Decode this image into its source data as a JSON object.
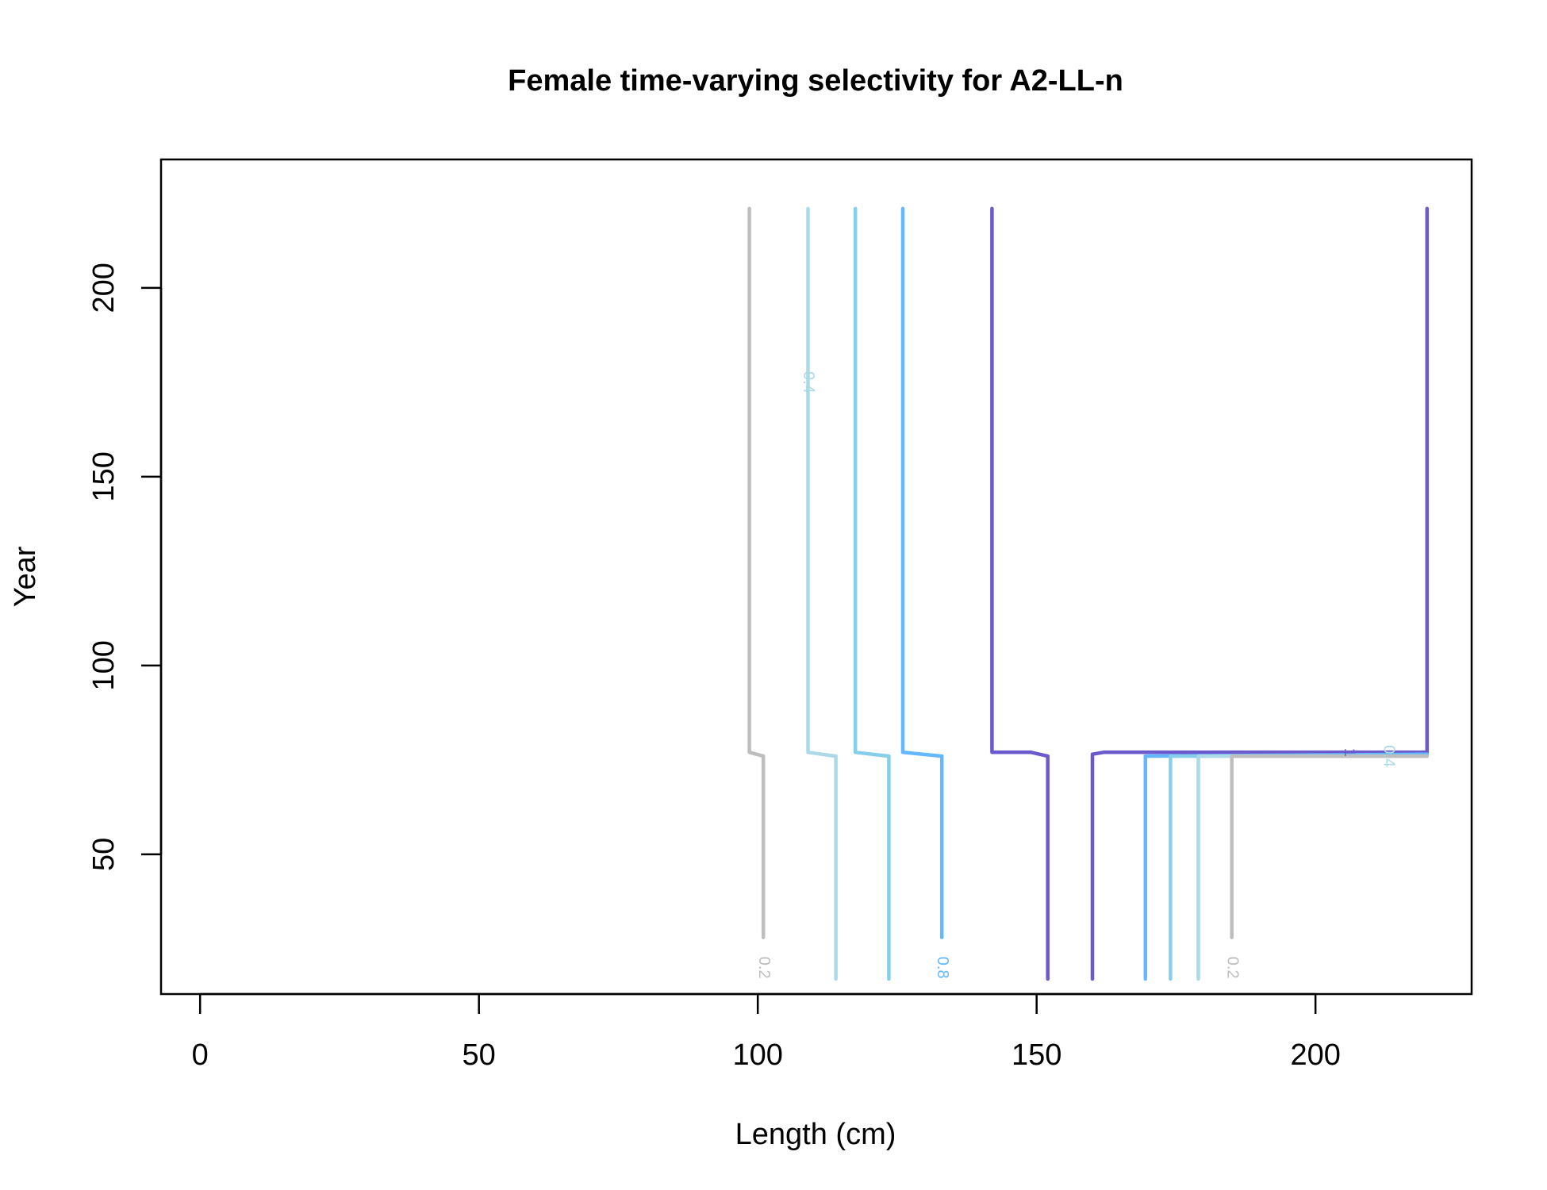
{
  "chart_data": {
    "type": "contour",
    "title": "Female time-varying selectivity for A2-LL-n",
    "xlabel": "Length (cm)",
    "ylabel": "Year",
    "xlim": [
      -7,
      228
    ],
    "ylim": [
      13,
      234
    ],
    "xticks": [
      0,
      50,
      100,
      150,
      200
    ],
    "yticks": [
      50,
      100,
      150,
      200
    ],
    "grid": false,
    "legend": "none",
    "contours": [
      {
        "level": 0.2,
        "label": "0.2",
        "color": "#BEBEBE",
        "points": [
          [
            98.5,
            221
          ],
          [
            98.5,
            77
          ],
          [
            101,
            76
          ],
          [
            101,
            28
          ]
        ],
        "label_at": [
          101,
          20
        ]
      },
      {
        "level": 0.4,
        "label": "0.4",
        "color": "#ADD8E6",
        "points": [
          [
            109,
            221
          ],
          [
            109,
            77
          ],
          [
            114,
            76
          ],
          [
            114,
            17
          ]
        ],
        "label_at": [
          109,
          175
        ]
      },
      {
        "level": 0.6,
        "label": "",
        "color": "#87CEEB",
        "points": [
          [
            117.5,
            221
          ],
          [
            117.5,
            77
          ],
          [
            123.5,
            76
          ],
          [
            123.5,
            17
          ]
        ]
      },
      {
        "level": 0.8,
        "label": "0.8",
        "color": "#63B8FF",
        "points": [
          [
            126,
            221
          ],
          [
            126,
            77
          ],
          [
            133,
            76
          ],
          [
            133,
            28
          ]
        ],
        "label_at": [
          133,
          20
        ]
      },
      {
        "level": 1,
        "label": "1",
        "color": "#6A5ACD",
        "points": [
          [
            142,
            221
          ],
          [
            142,
            77
          ],
          [
            149,
            77
          ],
          [
            152,
            76
          ],
          [
            152,
            17
          ]
        ],
        "label_at": [
          206,
          77
        ]
      },
      {
        "level": 1,
        "label": "",
        "color": "#6A5ACD",
        "points": [
          [
            160,
            17
          ],
          [
            160,
            76.5
          ],
          [
            162,
            77
          ],
          [
            220,
            77
          ],
          [
            220,
            221
          ]
        ]
      },
      {
        "level": 0.8,
        "label": "",
        "color": "#63B8FF",
        "points": [
          [
            169.5,
            17
          ],
          [
            169.5,
            76
          ],
          [
            220,
            76.5
          ]
        ]
      },
      {
        "level": 0.6,
        "label": "",
        "color": "#87CEEB",
        "points": [
          [
            174,
            17
          ],
          [
            174,
            76
          ],
          [
            220,
            76
          ]
        ]
      },
      {
        "level": 0.4,
        "label": "0.4",
        "color": "#ADD8E6",
        "points": [
          [
            179,
            17
          ],
          [
            179,
            76
          ],
          [
            220,
            76
          ]
        ],
        "label_at": [
          213,
          76
        ]
      },
      {
        "level": 0.2,
        "label": "0.2",
        "color": "#BEBEBE",
        "points": [
          [
            185,
            28
          ],
          [
            185,
            76
          ],
          [
            220,
            76
          ]
        ],
        "label_at": [
          185,
          20
        ]
      }
    ]
  }
}
